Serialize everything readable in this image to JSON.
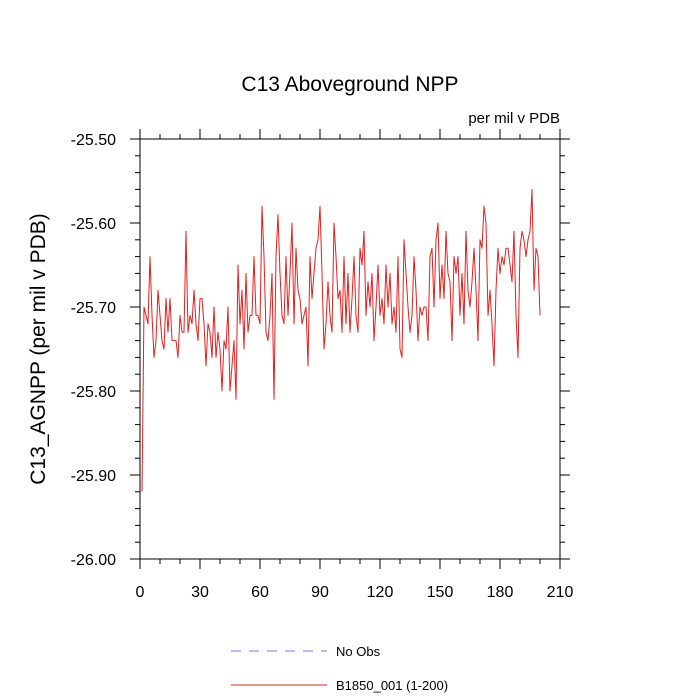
{
  "chart_data": {
    "type": "line",
    "title": "C13 Aboveground NPP",
    "units_label": "per mil v PDB",
    "ylabel": "C13_AGNPP  (per mil v PDB)",
    "xlabel": "",
    "xlim": [
      0,
      210
    ],
    "ylim": [
      -26.0,
      -25.5
    ],
    "x_ticks": [
      0,
      30,
      60,
      90,
      120,
      150,
      180,
      210
    ],
    "x_tick_labels": [
      "0",
      "30",
      "60",
      "90",
      "120",
      "150",
      "180",
      "210"
    ],
    "y_ticks": [
      -26.0,
      -25.9,
      -25.8,
      -25.7,
      -25.6,
      -25.5
    ],
    "y_tick_labels": [
      "-26.00",
      "-25.90",
      "-25.80",
      "-25.70",
      "-25.60",
      "-25.50"
    ],
    "grid": false,
    "legend_position": "bottom",
    "series": [
      {
        "name": "No Obs",
        "color": "#7a7aee",
        "style": "dashed",
        "values": []
      },
      {
        "name": "B1850_001 (1-200)",
        "color": "#e02020",
        "style": "solid",
        "x_start": 1,
        "values": [
          -25.92,
          -25.7,
          -25.71,
          -25.72,
          -25.64,
          -25.71,
          -25.76,
          -25.74,
          -25.68,
          -25.71,
          -25.74,
          -25.75,
          -25.69,
          -25.73,
          -25.69,
          -25.74,
          -25.74,
          -25.74,
          -25.76,
          -25.71,
          -25.73,
          -25.73,
          -25.61,
          -25.73,
          -25.71,
          -25.72,
          -25.68,
          -25.72,
          -25.74,
          -25.69,
          -25.69,
          -25.72,
          -25.77,
          -25.72,
          -25.73,
          -25.76,
          -25.7,
          -25.76,
          -25.73,
          -25.75,
          -25.8,
          -25.74,
          -25.75,
          -25.7,
          -25.8,
          -25.77,
          -25.74,
          -25.81,
          -25.65,
          -25.72,
          -25.68,
          -25.75,
          -25.66,
          -25.73,
          -25.71,
          -25.71,
          -25.64,
          -25.71,
          -25.71,
          -25.72,
          -25.58,
          -25.64,
          -25.73,
          -25.74,
          -25.71,
          -25.66,
          -25.81,
          -25.64,
          -25.59,
          -25.66,
          -25.71,
          -25.72,
          -25.64,
          -25.71,
          -25.66,
          -25.6,
          -25.72,
          -25.63,
          -25.68,
          -25.69,
          -25.72,
          -25.71,
          -25.7,
          -25.77,
          -25.64,
          -25.69,
          -25.66,
          -25.63,
          -25.62,
          -25.58,
          -25.66,
          -25.75,
          -25.72,
          -25.67,
          -25.71,
          -25.73,
          -25.6,
          -25.64,
          -25.69,
          -25.68,
          -25.73,
          -25.64,
          -25.72,
          -25.66,
          -25.73,
          -25.69,
          -25.64,
          -25.71,
          -25.73,
          -25.63,
          -25.65,
          -25.61,
          -25.71,
          -25.67,
          -25.7,
          -25.66,
          -25.74,
          -25.7,
          -25.65,
          -25.71,
          -25.69,
          -25.72,
          -25.65,
          -25.7,
          -25.66,
          -25.72,
          -25.7,
          -25.73,
          -25.64,
          -25.75,
          -25.76,
          -25.62,
          -25.66,
          -25.7,
          -25.73,
          -25.71,
          -25.64,
          -25.68,
          -25.74,
          -25.7,
          -25.71,
          -25.7,
          -25.7,
          -25.74,
          -25.64,
          -25.63,
          -25.7,
          -25.62,
          -25.6,
          -25.69,
          -25.65,
          -25.69,
          -25.61,
          -25.66,
          -25.67,
          -25.74,
          -25.64,
          -25.66,
          -25.64,
          -25.71,
          -25.66,
          -25.72,
          -25.61,
          -25.68,
          -25.7,
          -25.67,
          -25.63,
          -25.68,
          -25.74,
          -25.62,
          -25.63,
          -25.58,
          -25.6,
          -25.71,
          -25.68,
          -25.72,
          -25.77,
          -25.68,
          -25.63,
          -25.66,
          -25.64,
          -25.65,
          -25.63,
          -25.63,
          -25.65,
          -25.67,
          -25.61,
          -25.71,
          -25.76,
          -25.63,
          -25.61,
          -25.62,
          -25.64,
          -25.62,
          -25.61,
          -25.56,
          -25.68,
          -25.63,
          -25.64,
          -25.71
        ]
      }
    ]
  }
}
